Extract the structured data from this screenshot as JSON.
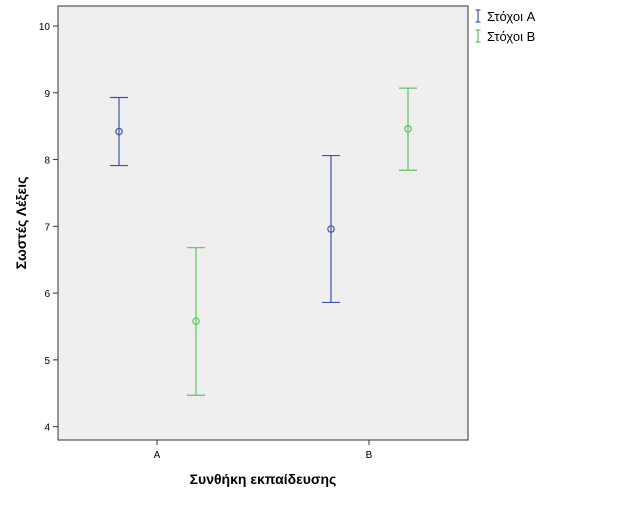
{
  "chart_data": {
    "type": "errorbar",
    "title": "",
    "xlabel": "Συνθήκη εκπαίδευσης",
    "ylabel": "Σωστές Λέξεις",
    "categories": [
      "A",
      "B"
    ],
    "ylim": [
      3.8,
      10.3
    ],
    "yticks": [
      4,
      5,
      6,
      7,
      8,
      9,
      10
    ],
    "grid": false,
    "legend_position": "top-right outside",
    "plot_background": "#efefef",
    "series": [
      {
        "name": "Στόχοι A",
        "color": "#3d55a6",
        "points": [
          {
            "category": "A",
            "mean": 8.42,
            "lower": 7.91,
            "upper": 8.93
          },
          {
            "category": "B",
            "mean": 6.96,
            "lower": 5.86,
            "upper": 8.06
          }
        ]
      },
      {
        "name": "Στόχοι B",
        "color": "#5cc45c",
        "points": [
          {
            "category": "A",
            "mean": 5.58,
            "lower": 4.47,
            "upper": 6.68
          },
          {
            "category": "B",
            "mean": 8.46,
            "lower": 7.84,
            "upper": 9.07
          }
        ]
      }
    ]
  }
}
